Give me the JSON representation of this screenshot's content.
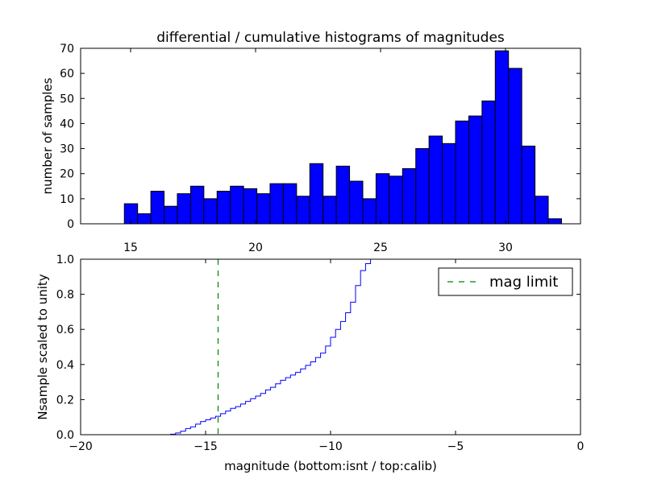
{
  "chart_data": [
    {
      "type": "bar",
      "title": "differential / cumulative histograms of magnitudes",
      "xlabel": "",
      "ylabel": "number of samples",
      "xlim": [
        13.0,
        33.0
      ],
      "ylim": [
        0,
        70
      ],
      "xticks": [
        15,
        20,
        25,
        30
      ],
      "yticks": [
        0,
        10,
        20,
        30,
        40,
        50,
        60,
        70
      ],
      "xtick_position": "top",
      "bar_color": "#0000ff",
      "bar_edge_color": "#000000",
      "bins": [
        {
          "x0": 14.75,
          "x1": 15.28,
          "value": 8
        },
        {
          "x0": 15.28,
          "x1": 15.81,
          "value": 4
        },
        {
          "x0": 15.81,
          "x1": 16.34,
          "value": 13
        },
        {
          "x0": 16.34,
          "x1": 16.87,
          "value": 7
        },
        {
          "x0": 16.87,
          "x1": 17.4,
          "value": 12
        },
        {
          "x0": 17.4,
          "x1": 17.93,
          "value": 15
        },
        {
          "x0": 17.93,
          "x1": 18.46,
          "value": 10
        },
        {
          "x0": 18.46,
          "x1": 18.99,
          "value": 13
        },
        {
          "x0": 18.99,
          "x1": 19.52,
          "value": 15
        },
        {
          "x0": 19.52,
          "x1": 20.05,
          "value": 14
        },
        {
          "x0": 20.05,
          "x1": 20.58,
          "value": 12
        },
        {
          "x0": 20.58,
          "x1": 21.11,
          "value": 16
        },
        {
          "x0": 21.11,
          "x1": 21.64,
          "value": 16
        },
        {
          "x0": 21.64,
          "x1": 22.17,
          "value": 11
        },
        {
          "x0": 22.17,
          "x1": 22.7,
          "value": 24
        },
        {
          "x0": 22.7,
          "x1": 23.23,
          "value": 11
        },
        {
          "x0": 23.23,
          "x1": 23.76,
          "value": 23
        },
        {
          "x0": 23.76,
          "x1": 24.29,
          "value": 17
        },
        {
          "x0": 24.29,
          "x1": 24.82,
          "value": 10
        },
        {
          "x0": 24.82,
          "x1": 25.35,
          "value": 20
        },
        {
          "x0": 25.35,
          "x1": 25.88,
          "value": 19
        },
        {
          "x0": 25.88,
          "x1": 26.41,
          "value": 22
        },
        {
          "x0": 26.41,
          "x1": 26.94,
          "value": 30
        },
        {
          "x0": 26.94,
          "x1": 27.47,
          "value": 35
        },
        {
          "x0": 27.47,
          "x1": 28.0,
          "value": 32
        },
        {
          "x0": 28.0,
          "x1": 28.53,
          "value": 41
        },
        {
          "x0": 28.53,
          "x1": 29.06,
          "value": 43
        },
        {
          "x0": 29.06,
          "x1": 29.59,
          "value": 49
        },
        {
          "x0": 29.59,
          "x1": 30.12,
          "value": 69
        },
        {
          "x0": 30.12,
          "x1": 30.65,
          "value": 62
        },
        {
          "x0": 30.65,
          "x1": 31.18,
          "value": 31
        },
        {
          "x0": 31.18,
          "x1": 31.71,
          "value": 11
        },
        {
          "x0": 31.71,
          "x1": 32.24,
          "value": 2
        }
      ]
    },
    {
      "type": "line",
      "title": "",
      "xlabel": "magnitude (bottom:isnt / top:calib)",
      "ylabel": "Nsample scaled to unity",
      "xlim": [
        -20,
        0
      ],
      "ylim": [
        0.0,
        1.0
      ],
      "xticks": [
        -20,
        -15,
        -10,
        -5,
        0
      ],
      "xtick_labels": [
        "−20",
        "−15",
        "−10",
        "−5",
        "0"
      ],
      "yticks": [
        0.0,
        0.2,
        0.4,
        0.6,
        0.8,
        1.0
      ],
      "ytick_labels": [
        "0.0",
        "0.2",
        "0.4",
        "0.6",
        "0.8",
        "1.0"
      ],
      "legend_position": "top-right",
      "series": [
        {
          "style": "step",
          "color": "#0000ff",
          "x": [
            -20.0,
            -16.4,
            -16.2,
            -16.0,
            -15.8,
            -15.6,
            -15.4,
            -15.2,
            -15.0,
            -14.8,
            -14.6,
            -14.4,
            -14.2,
            -14.0,
            -13.8,
            -13.6,
            -13.4,
            -13.2,
            -13.0,
            -12.8,
            -12.6,
            -12.4,
            -12.2,
            -12.0,
            -11.8,
            -11.6,
            -11.4,
            -11.2,
            -11.0,
            -10.8,
            -10.6,
            -10.4,
            -10.2,
            -10.0,
            -9.8,
            -9.6,
            -9.4,
            -9.2,
            -9.0,
            -8.8,
            -8.6,
            -8.4
          ],
          "y": [
            0.0,
            0.003,
            0.01,
            0.02,
            0.035,
            0.045,
            0.06,
            0.075,
            0.085,
            0.095,
            0.105,
            0.12,
            0.135,
            0.15,
            0.16,
            0.175,
            0.19,
            0.205,
            0.22,
            0.235,
            0.255,
            0.27,
            0.29,
            0.31,
            0.325,
            0.34,
            0.355,
            0.375,
            0.395,
            0.415,
            0.44,
            0.465,
            0.505,
            0.555,
            0.6,
            0.645,
            0.695,
            0.755,
            0.85,
            0.935,
            0.975,
            1.0
          ]
        },
        {
          "name": "mag limit",
          "style": "dashed-vertical",
          "color": "#008000",
          "x": -14.5
        }
      ]
    }
  ]
}
